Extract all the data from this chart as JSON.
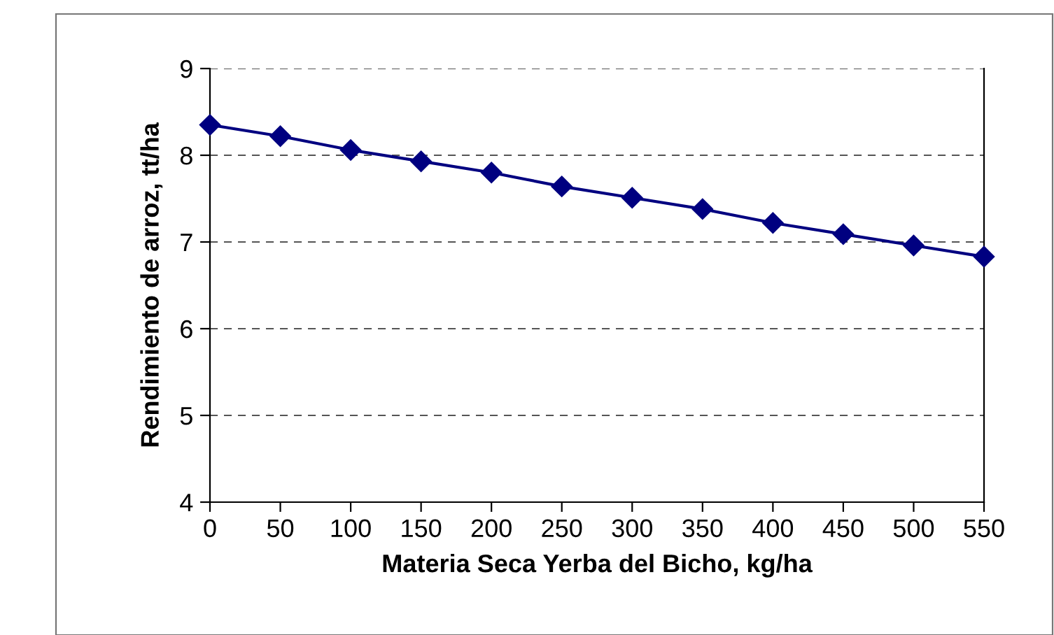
{
  "chart_data": {
    "type": "line",
    "xlabel": "Materia Seca Yerba del Bicho, kg/ha",
    "ylabel": "Rendimiento de arroz, tt/ha",
    "x": [
      0,
      50,
      100,
      150,
      200,
      250,
      300,
      350,
      400,
      450,
      500,
      550
    ],
    "series": [
      {
        "color": "#000080",
        "values": [
          8.35,
          8.22,
          8.06,
          7.93,
          7.8,
          7.64,
          7.51,
          7.38,
          7.22,
          7.09,
          6.96,
          6.83
        ]
      }
    ],
    "xlim": [
      0,
      550
    ],
    "xticks": [
      0,
      50,
      100,
      150,
      200,
      250,
      300,
      350,
      400,
      450,
      500,
      550
    ],
    "ylim": [
      4,
      9
    ],
    "yticks": [
      4,
      5,
      6,
      7,
      8,
      9
    ],
    "grid": "y",
    "marker": "diamond",
    "line_style": "solid"
  }
}
